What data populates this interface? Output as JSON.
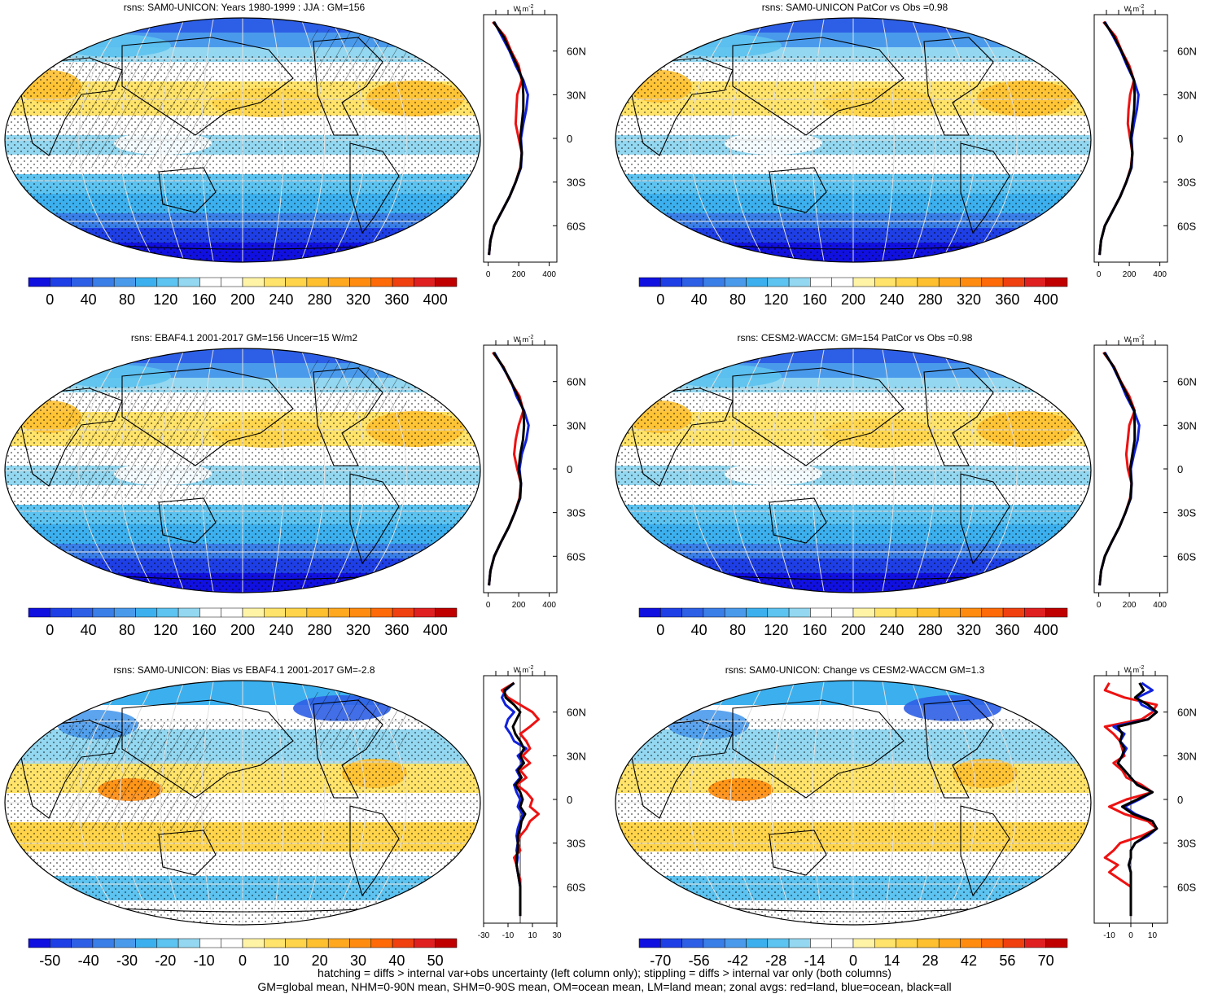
{
  "footer": {
    "line1": "hatching = diffs > internal var+obs uncertainty (left column only); stippling = diffs > internal var only (both columns)",
    "line2": "GM=global mean, NHM=0-90N mean, SHM=0-90S mean, OM=ocean mean, LM=land mean; zonal avgs: red=land, blue=ocean, black=all"
  },
  "palettes": {
    "absolute": [
      "#1010e0",
      "#1f3fe6",
      "#2d5fe6",
      "#3a7ee8",
      "#4a9aec",
      "#3cb0ee",
      "#5dc3f0",
      "#93d7f0",
      "#ffffff",
      "#ffffff",
      "#fff3a6",
      "#ffe36a",
      "#ffd44a",
      "#ffc030",
      "#ffa820",
      "#ff8c10",
      "#ff6a08",
      "#f04010",
      "#e02020",
      "#c00000"
    ],
    "bias": [
      "#1010e0",
      "#1f3fe6",
      "#2d5fe6",
      "#3a7ee8",
      "#4a9aec",
      "#3cb0ee",
      "#5dc3f0",
      "#93d7f0",
      "#ffffff",
      "#ffffff",
      "#fff3a6",
      "#ffe36a",
      "#ffd44a",
      "#ffc030",
      "#ffa820",
      "#ff8c10",
      "#ff6a08",
      "#f04010",
      "#e02020",
      "#c00000"
    ]
  },
  "chart_data": [
    {
      "id": "p1",
      "type": "heatmap",
      "title": "rsns: SAM0-UNICON: Years 1980-1999 : JJA : GM=156",
      "colorbar_labels": [
        "0",
        "40",
        "80",
        "120",
        "160",
        "200",
        "240",
        "280",
        "320",
        "360",
        "400"
      ],
      "zonal": {
        "units": "W m",
        "units_sup": "-2",
        "lat_ticks": [
          "60N",
          "30N",
          "0",
          "30S",
          "60S"
        ],
        "x_ticks": [
          "0",
          "200",
          "400"
        ],
        "xlim": [
          -30,
          450
        ],
        "lat": [
          80,
          70,
          60,
          50,
          40,
          30,
          20,
          10,
          0,
          -10,
          -20,
          -30,
          -40,
          -50,
          -60,
          -70,
          -80
        ],
        "land": [
          30,
          110,
          150,
          200,
          220,
          190,
          185,
          180,
          200,
          220,
          210,
          180,
          140,
          90,
          40,
          15,
          5
        ],
        "ocean": [
          40,
          90,
          140,
          180,
          230,
          260,
          250,
          230,
          215,
          220,
          215,
          180,
          140,
          90,
          40,
          15,
          5
        ],
        "all": [
          35,
          100,
          145,
          190,
          225,
          230,
          230,
          220,
          210,
          220,
          212,
          180,
          140,
          90,
          40,
          15,
          5
        ]
      }
    },
    {
      "id": "p2",
      "type": "heatmap",
      "title": "rsns: SAM0-UNICON PatCor vs Obs =0.98",
      "colorbar_labels": [
        "0",
        "40",
        "80",
        "120",
        "160",
        "200",
        "240",
        "280",
        "320",
        "360",
        "400"
      ],
      "zonal": {
        "units": "W m",
        "units_sup": "-2",
        "lat_ticks": [
          "60N",
          "30N",
          "0",
          "30S",
          "60S"
        ],
        "x_ticks": [
          "0",
          "200",
          "400"
        ],
        "xlim": [
          -30,
          450
        ],
        "lat": [
          80,
          70,
          60,
          50,
          40,
          30,
          20,
          10,
          0,
          -10,
          -20,
          -30,
          -40,
          -50,
          -60,
          -70,
          -80
        ],
        "land": [
          30,
          110,
          150,
          200,
          230,
          205,
          195,
          190,
          205,
          220,
          210,
          180,
          140,
          90,
          40,
          15,
          5
        ],
        "ocean": [
          40,
          95,
          145,
          185,
          230,
          260,
          250,
          230,
          215,
          220,
          215,
          180,
          140,
          90,
          40,
          15,
          5
        ],
        "all": [
          35,
          100,
          148,
          192,
          230,
          235,
          232,
          220,
          210,
          220,
          212,
          180,
          140,
          90,
          40,
          15,
          5
        ]
      }
    },
    {
      "id": "p3",
      "type": "heatmap",
      "title": "rsns: EBAF4.1 2001-2017 GM=156 Uncer=15 W/m2",
      "colorbar_labels": [
        "0",
        "40",
        "80",
        "120",
        "160",
        "200",
        "240",
        "280",
        "320",
        "360",
        "400"
      ],
      "zonal": {
        "units": "W m",
        "units_sup": "-2",
        "lat_ticks": [
          "60N",
          "30N",
          "0",
          "30S",
          "60S"
        ],
        "x_ticks": [
          "0",
          "200",
          "400"
        ],
        "xlim": [
          -30,
          450
        ],
        "lat": [
          80,
          70,
          60,
          50,
          40,
          30,
          20,
          10,
          0,
          -10,
          -20,
          -30,
          -40,
          -50,
          -60,
          -70,
          -80
        ],
        "land": [
          30,
          100,
          145,
          205,
          230,
          200,
          180,
          170,
          190,
          215,
          205,
          175,
          135,
          85,
          40,
          15,
          5
        ],
        "ocean": [
          40,
          95,
          150,
          185,
          235,
          265,
          250,
          220,
          205,
          215,
          210,
          175,
          135,
          85,
          40,
          15,
          5
        ],
        "all": [
          35,
          98,
          148,
          195,
          232,
          235,
          228,
          210,
          200,
          215,
          208,
          175,
          135,
          85,
          40,
          15,
          5
        ]
      }
    },
    {
      "id": "p4",
      "type": "heatmap",
      "title": "rsns: CESM2-WACCM: GM=154 PatCor vs Obs =0.98",
      "colorbar_labels": [
        "0",
        "40",
        "80",
        "120",
        "160",
        "200",
        "240",
        "280",
        "320",
        "360",
        "400"
      ],
      "zonal": {
        "units": "W m",
        "units_sup": "-2",
        "lat_ticks": [
          "60N",
          "30N",
          "0",
          "30S",
          "60S"
        ],
        "x_ticks": [
          "0",
          "200",
          "400"
        ],
        "xlim": [
          -30,
          450
        ],
        "lat": [
          80,
          70,
          60,
          50,
          40,
          30,
          20,
          10,
          0,
          -10,
          -20,
          -30,
          -40,
          -50,
          -60,
          -70,
          -80
        ],
        "land": [
          30,
          100,
          145,
          200,
          235,
          200,
          190,
          180,
          190,
          215,
          205,
          175,
          135,
          85,
          40,
          15,
          5
        ],
        "ocean": [
          40,
          95,
          140,
          180,
          230,
          265,
          255,
          230,
          210,
          215,
          210,
          175,
          135,
          85,
          40,
          15,
          5
        ],
        "all": [
          35,
          98,
          142,
          190,
          232,
          235,
          235,
          220,
          205,
          215,
          208,
          175,
          135,
          85,
          40,
          15,
          5
        ]
      }
    },
    {
      "id": "p5",
      "type": "heatmap",
      "title": "rsns: SAM0-UNICON: Bias vs EBAF4.1 2001-2017 GM=-2.8",
      "colorbar_labels": [
        "-50",
        "-40",
        "-30",
        "-20",
        "-10",
        "0",
        "10",
        "20",
        "30",
        "40",
        "50"
      ],
      "zonal": {
        "units": "W m",
        "units_sup": "-2",
        "lat_ticks": [
          "60N",
          "30N",
          "0",
          "30S",
          "60S"
        ],
        "x_ticks": [
          "-30",
          "-10",
          "10",
          "30"
        ],
        "xlim": [
          -30,
          30
        ],
        "lat": [
          80,
          75,
          70,
          65,
          60,
          55,
          50,
          45,
          40,
          35,
          30,
          25,
          20,
          15,
          10,
          5,
          0,
          -5,
          -10,
          -15,
          -20,
          -25,
          -30,
          -35,
          -40,
          -45,
          -50,
          -55,
          -60,
          -70,
          -80
        ],
        "land": [
          -5,
          -15,
          -10,
          0,
          10,
          15,
          8,
          0,
          5,
          8,
          2,
          8,
          0,
          5,
          -3,
          5,
          10,
          8,
          15,
          8,
          5,
          0,
          -2,
          0,
          -5,
          -3,
          -2,
          0,
          0,
          0,
          0
        ],
        "ocean": [
          -5,
          -12,
          -15,
          -12,
          -5,
          -10,
          -12,
          -8,
          -5,
          5,
          -2,
          2,
          -3,
          0,
          -5,
          -3,
          0,
          -2,
          2,
          0,
          -2,
          -3,
          -2,
          -3,
          -2,
          -3,
          -2,
          -1,
          0,
          0,
          0
        ],
        "all": [
          -5,
          -13,
          -12,
          -5,
          0,
          -3,
          -6,
          -4,
          0,
          3,
          0,
          3,
          -2,
          1,
          -4,
          0,
          2,
          0,
          4,
          1,
          0,
          -2,
          -2,
          -2,
          -3,
          -3,
          -2,
          -1,
          0,
          0,
          0
        ]
      }
    },
    {
      "id": "p6",
      "type": "heatmap",
      "title": "rsns: SAM0-UNICON: Change vs CESM2-WACCM GM=1.3",
      "colorbar_labels": [
        "-70",
        "-56",
        "-42",
        "-28",
        "-14",
        "0",
        "14",
        "28",
        "42",
        "56",
        "70"
      ],
      "zonal": {
        "units": "W m",
        "units_sup": "-2",
        "lat_ticks": [
          "60N",
          "30N",
          "0",
          "30S",
          "60S"
        ],
        "x_ticks": [
          "-10",
          "0",
          "10"
        ],
        "xlim": [
          -17,
          17
        ],
        "lat": [
          80,
          75,
          70,
          65,
          60,
          55,
          50,
          45,
          40,
          35,
          30,
          25,
          20,
          15,
          10,
          5,
          0,
          -5,
          -10,
          -15,
          -20,
          -25,
          -30,
          -35,
          -40,
          -45,
          -50,
          -55,
          -60,
          -65,
          -70,
          -75,
          -80
        ],
        "land": [
          -10,
          -12,
          -3,
          12,
          10,
          5,
          -12,
          -8,
          -5,
          -4,
          -3,
          -8,
          -4,
          -2,
          5,
          10,
          -2,
          -10,
          -3,
          8,
          12,
          5,
          -5,
          -8,
          -12,
          -6,
          -10,
          -5,
          0,
          0,
          0,
          0,
          0
        ],
        "ocean": [
          5,
          10,
          3,
          5,
          12,
          8,
          -8,
          -3,
          -5,
          -2,
          -4,
          -6,
          -3,
          0,
          3,
          10,
          4,
          -3,
          2,
          10,
          12,
          8,
          2,
          0,
          0,
          -1,
          0,
          0,
          0,
          0,
          0,
          0,
          0
        ],
        "all": [
          4,
          6,
          2,
          8,
          12,
          8,
          -6,
          -4,
          -5,
          -3,
          -4,
          -6,
          -3,
          0,
          3,
          10,
          3,
          -4,
          1,
          10,
          12,
          7,
          2,
          0,
          0,
          -1,
          0,
          0,
          0,
          0,
          0,
          0,
          0
        ]
      }
    }
  ]
}
